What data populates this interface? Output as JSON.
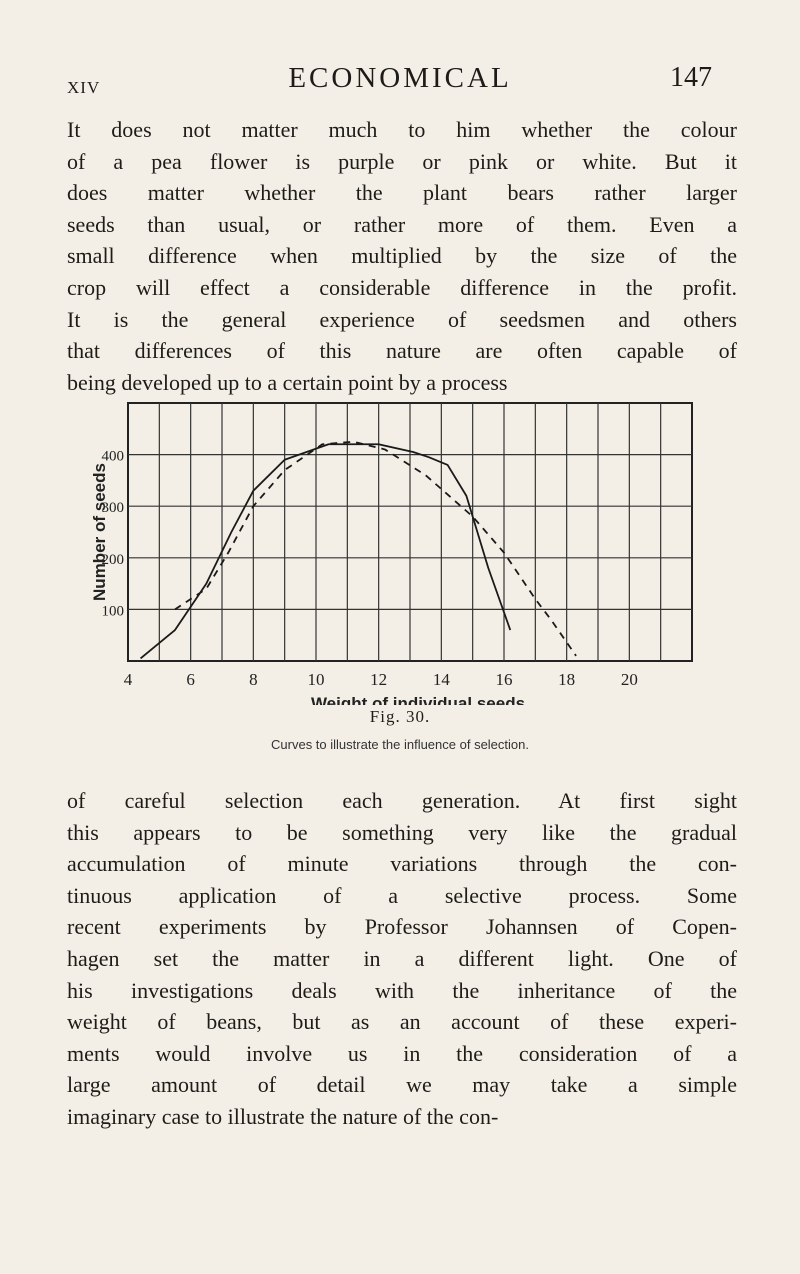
{
  "header": {
    "section": "XIV",
    "title": "ECONOMICAL",
    "page_number": "147"
  },
  "paragraph_1": {
    "lines": [
      "It does not matter much to him whether the colour",
      "of a pea flower is purple or pink or white. But it",
      "does matter whether the plant bears rather larger",
      "seeds than usual, or rather more of them. Even a",
      "small difference when multiplied by the size of the",
      "crop will effect a considerable difference in the profit.",
      "It is the general experience of seedsmen and others",
      "that differences of this nature are often capable of",
      "being developed up to a certain point by a process"
    ]
  },
  "figure": {
    "caption": "Fig. 30.",
    "subcaption": "Curves to illustrate the influence of selection."
  },
  "chart_data": {
    "type": "line",
    "xlabel": "Weight of individual seeds",
    "ylabel": "Number of seeds",
    "x_ticks": [
      "4",
      "6",
      "8",
      "10",
      "12",
      "14",
      "16",
      "18",
      "20"
    ],
    "y_ticks": [
      "100",
      "200",
      "300",
      "400"
    ],
    "xlim": [
      4,
      22
    ],
    "ylim": [
      0,
      500
    ],
    "grid": true,
    "series": [
      {
        "style": "solid",
        "x": [
          4.4,
          5.5,
          6.5,
          7.3,
          8.0,
          9.0,
          10.4,
          12.0,
          13.1,
          13.6,
          14.2,
          14.8,
          15.5,
          16.2
        ],
        "y": [
          5,
          60,
          150,
          250,
          330,
          390,
          420,
          420,
          405,
          395,
          380,
          320,
          180,
          60
        ]
      },
      {
        "style": "dashed",
        "x": [
          5.5,
          6.5,
          7.2,
          8.0,
          9.0,
          10.2,
          11.2,
          12.2,
          13.5,
          15.0,
          16.0,
          17.0,
          17.5,
          18.3
        ],
        "y": [
          100,
          140,
          210,
          300,
          370,
          420,
          425,
          410,
          360,
          280,
          210,
          120,
          80,
          10
        ]
      }
    ]
  },
  "paragraph_2": {
    "lines": [
      "of careful selection each generation. At first sight",
      "this appears to be something very like the gradual",
      "accumulation of minute variations through the con-",
      "tinuous application of a selective process. Some",
      "recent experiments by Professor Johannsen of Copen-",
      "hagen set the matter in a different light. One of",
      "his investigations deals with the inheritance of the",
      "weight of beans, but as an account of these experi-",
      "ments would involve us in the consideration of a",
      "large amount of detail we may take a simple",
      "imaginary case to illustrate the nature of the con-"
    ]
  }
}
